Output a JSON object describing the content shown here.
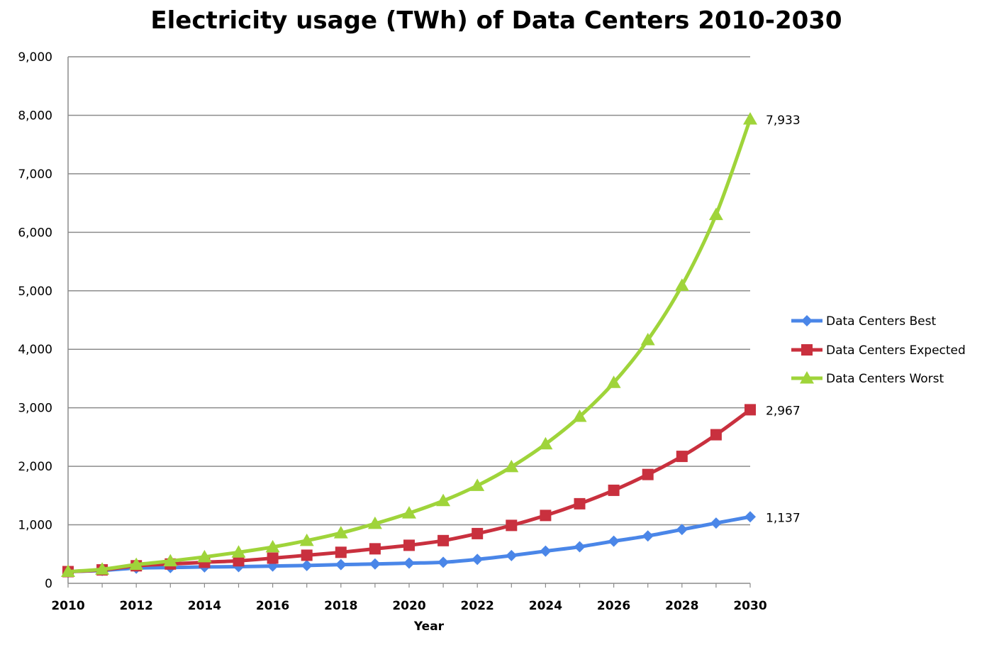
{
  "chart_data": {
    "type": "line",
    "title": "Electricity usage (TWh) of Data Centers 2010-2030",
    "xlabel": "Year",
    "ylabel": "",
    "xlim": [
      2010,
      2030
    ],
    "ylim": [
      0,
      9000
    ],
    "x_ticks": [
      2010,
      2012,
      2014,
      2016,
      2018,
      2020,
      2022,
      2024,
      2026,
      2028,
      2030
    ],
    "x_tick_labels": [
      "2010",
      "2012",
      "2014",
      "2016",
      "2018",
      "2020",
      "2022",
      "2024",
      "2026",
      "2028",
      "2030"
    ],
    "y_ticks": [
      0,
      1000,
      2000,
      3000,
      4000,
      5000,
      6000,
      7000,
      8000,
      9000
    ],
    "y_tick_labels": [
      "0",
      "1,000",
      "2,000",
      "3,000",
      "4,000",
      "5,000",
      "6,000",
      "7,000",
      "8,000",
      "9,000"
    ],
    "grid": "horizontal",
    "legend_position": "right",
    "x": [
      2010,
      2011,
      2012,
      2013,
      2014,
      2015,
      2016,
      2017,
      2018,
      2019,
      2020,
      2021,
      2022,
      2023,
      2024,
      2025,
      2026,
      2027,
      2028,
      2029,
      2030
    ],
    "series": [
      {
        "name": "Data Centers Best",
        "color": "#4a86e8",
        "marker": "diamond",
        "values": [
          200,
          220,
          260,
          270,
          280,
          285,
          295,
          305,
          320,
          330,
          345,
          360,
          410,
          475,
          550,
          625,
          720,
          810,
          920,
          1030,
          1137
        ],
        "end_label": "1,137"
      },
      {
        "name": "Data Centers Expected",
        "color": "#c9303e",
        "marker": "square",
        "values": [
          200,
          230,
          300,
          330,
          360,
          385,
          430,
          480,
          530,
          590,
          650,
          730,
          850,
          990,
          1160,
          1360,
          1590,
          1860,
          2170,
          2540,
          2967
        ],
        "end_label": "2,967"
      },
      {
        "name": "Data Centers Worst",
        "color": "#9fd43a",
        "marker": "triangle",
        "values": [
          200,
          240,
          320,
          380,
          450,
          530,
          620,
          730,
          860,
          1020,
          1200,
          1410,
          1670,
          1990,
          2380,
          2850,
          3430,
          4160,
          5090,
          6300,
          7933
        ],
        "end_label": "7,933"
      }
    ]
  }
}
